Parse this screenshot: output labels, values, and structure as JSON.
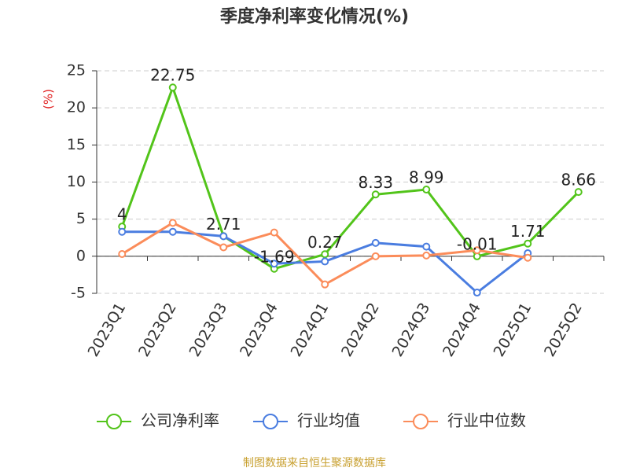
{
  "chart_data": {
    "type": "line",
    "title": "季度净利率变化情况(%)",
    "y_label": "(%)",
    "categories": [
      "2023Q1",
      "2023Q2",
      "2023Q3",
      "2023Q4",
      "2024Q1",
      "2024Q2",
      "2024Q3",
      "2024Q4",
      "2025Q1",
      "2025Q2"
    ],
    "series": [
      {
        "name": "公司净利率",
        "color": "#52c41a",
        "values": [
          4,
          22.75,
          2.71,
          -1.69,
          0.27,
          8.33,
          8.99,
          -0.01,
          1.71,
          8.66
        ],
        "show_labels": true
      },
      {
        "name": "行业均值",
        "color": "#4a7de0",
        "values": [
          3.3,
          3.3,
          2.7,
          -1.0,
          -0.7,
          1.8,
          1.3,
          -4.9,
          0.4,
          null
        ]
      },
      {
        "name": "行业中位数",
        "color": "#fb8c5a",
        "values": [
          0.3,
          4.5,
          1.2,
          3.2,
          -3.8,
          0.0,
          0.1,
          0.8,
          -0.2,
          null
        ]
      }
    ],
    "ylim": [
      -5,
      25
    ],
    "yticks": [
      -5,
      0,
      5,
      10,
      15,
      20,
      25
    ],
    "grid": true,
    "source": "制图数据来自恒生聚源数据库"
  }
}
